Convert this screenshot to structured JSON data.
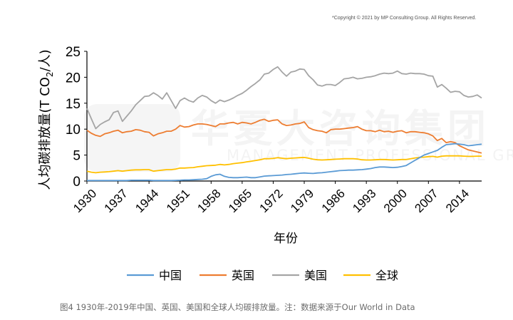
{
  "copyright": "*Copyright © 2021 by MP Consulting Group. All Rights Reserved.",
  "watermark": {
    "cn": "华夏大咨询集团",
    "en": "MANAGEMENT PROFESSIONAL GROUP"
  },
  "caption": "图4  1930年-2019年中国、英国、美国和全球人均碳排放量。注：数据来源于Our World in Data",
  "chart_data": {
    "type": "line",
    "title": "",
    "xlabel": "年份",
    "ylabel": "人均碳排放量(T CO2/人)",
    "ylabel_parts": {
      "main": "人均碳排放量(T CO",
      "sub": "2",
      "tail": "/人)"
    },
    "xlim": [
      1930,
      2019
    ],
    "ylim": [
      0,
      25
    ],
    "x_ticks": [
      "1930",
      "1937",
      "1944",
      "1951",
      "1958",
      "1965",
      "1972",
      "1979",
      "1986",
      "1993",
      "2000",
      "2007",
      "2014"
    ],
    "y_ticks": [
      "0",
      "5",
      "10",
      "15",
      "20",
      "25"
    ],
    "grid": false,
    "legend_position": "bottom",
    "x": [
      1930,
      1931,
      1932,
      1933,
      1934,
      1935,
      1936,
      1937,
      1938,
      1939,
      1940,
      1941,
      1942,
      1943,
      1944,
      1945,
      1946,
      1947,
      1948,
      1949,
      1950,
      1951,
      1952,
      1953,
      1954,
      1955,
      1956,
      1957,
      1958,
      1959,
      1960,
      1961,
      1962,
      1963,
      1964,
      1965,
      1966,
      1967,
      1968,
      1969,
      1970,
      1971,
      1972,
      1973,
      1974,
      1975,
      1976,
      1977,
      1978,
      1979,
      1980,
      1981,
      1982,
      1983,
      1984,
      1985,
      1986,
      1987,
      1988,
      1989,
      1990,
      1991,
      1992,
      1993,
      1994,
      1995,
      1996,
      1997,
      1998,
      1999,
      2000,
      2001,
      2002,
      2003,
      2004,
      2005,
      2006,
      2007,
      2008,
      2009,
      2010,
      2011,
      2012,
      2013,
      2014,
      2015,
      2016,
      2017,
      2018,
      2019
    ],
    "series": [
      {
        "name": "中国",
        "color": "#5b9bd5",
        "values": [
          0.1,
          0.1,
          0.1,
          0.1,
          0.1,
          0.1,
          0.1,
          0.1,
          0.1,
          0.1,
          0.15,
          0.15,
          0.15,
          0.15,
          0.15,
          0.1,
          0.1,
          0.1,
          0.1,
          0.1,
          0.12,
          0.15,
          0.2,
          0.2,
          0.25,
          0.3,
          0.35,
          0.45,
          0.9,
          1.2,
          1.3,
          0.9,
          0.7,
          0.65,
          0.65,
          0.7,
          0.75,
          0.65,
          0.65,
          0.8,
          0.95,
          1.0,
          1.05,
          1.1,
          1.15,
          1.25,
          1.3,
          1.4,
          1.5,
          1.55,
          1.5,
          1.45,
          1.55,
          1.6,
          1.7,
          1.8,
          1.9,
          2.0,
          2.05,
          2.1,
          2.1,
          2.15,
          2.2,
          2.3,
          2.4,
          2.6,
          2.7,
          2.7,
          2.65,
          2.6,
          2.65,
          2.8,
          3.0,
          3.5,
          4.0,
          4.5,
          5.0,
          5.3,
          5.6,
          5.9,
          6.5,
          7.0,
          7.1,
          7.2,
          7.1,
          7.0,
          6.8,
          6.9,
          7.0,
          7.1
        ]
      },
      {
        "name": "英国",
        "color": "#ed7d31",
        "values": [
          9.8,
          9.2,
          8.8,
          8.6,
          9.1,
          9.3,
          9.6,
          9.8,
          9.3,
          9.5,
          9.6,
          9.9,
          9.8,
          9.5,
          9.4,
          8.7,
          9.1,
          9.3,
          9.6,
          9.6,
          10.0,
          10.7,
          10.4,
          10.5,
          10.8,
          11.0,
          11.0,
          10.9,
          10.7,
          10.5,
          11.0,
          11.0,
          11.2,
          11.3,
          11.0,
          11.3,
          11.2,
          11.0,
          11.3,
          11.7,
          11.9,
          11.5,
          11.7,
          11.8,
          11.0,
          10.7,
          10.8,
          11.0,
          11.1,
          11.4,
          10.3,
          9.9,
          9.7,
          9.6,
          9.3,
          9.9,
          10.0,
          10.0,
          10.1,
          10.2,
          10.3,
          10.5,
          10.0,
          9.7,
          9.7,
          9.5,
          9.8,
          9.5,
          9.6,
          9.4,
          9.6,
          9.7,
          9.3,
          9.5,
          9.5,
          9.4,
          9.3,
          9.1,
          8.7,
          7.8,
          8.2,
          7.4,
          7.6,
          7.4,
          6.8,
          6.4,
          6.0,
          5.8,
          5.6,
          5.4
        ]
      },
      {
        "name": "美国",
        "color": "#a5a5a5",
        "values": [
          14.0,
          12.0,
          10.1,
          10.9,
          11.4,
          11.8,
          13.2,
          13.5,
          11.5,
          12.5,
          13.5,
          14.7,
          15.5,
          16.3,
          16.4,
          17.0,
          16.5,
          15.8,
          17.0,
          15.5,
          14.0,
          15.5,
          16.0,
          15.5,
          15.2,
          16.0,
          16.5,
          16.2,
          15.5,
          15.0,
          15.6,
          15.3,
          15.6,
          16.0,
          16.5,
          16.9,
          17.5,
          18.2,
          18.8,
          19.5,
          20.6,
          20.8,
          21.5,
          22.0,
          21.0,
          20.2,
          21.0,
          21.2,
          21.6,
          21.5,
          20.3,
          19.5,
          18.5,
          18.3,
          18.6,
          18.6,
          18.4,
          19.0,
          19.7,
          19.8,
          20.0,
          19.7,
          19.8,
          20.0,
          20.1,
          20.3,
          20.6,
          20.8,
          20.7,
          20.8,
          21.2,
          20.7,
          20.6,
          20.8,
          20.7,
          20.7,
          20.6,
          20.3,
          20.2,
          18.1,
          18.6,
          17.9,
          17.1,
          17.3,
          17.2,
          16.5,
          16.2,
          16.3,
          16.6,
          16.0
        ]
      },
      {
        "name": "全球",
        "color": "#ffc000",
        "values": [
          1.9,
          1.7,
          1.6,
          1.7,
          1.75,
          1.8,
          1.9,
          2.0,
          1.9,
          2.0,
          2.1,
          2.15,
          2.15,
          2.2,
          2.2,
          1.9,
          2.0,
          2.1,
          2.2,
          2.2,
          2.3,
          2.5,
          2.5,
          2.55,
          2.6,
          2.75,
          2.85,
          2.95,
          3.0,
          3.05,
          3.2,
          3.1,
          3.2,
          3.35,
          3.45,
          3.55,
          3.7,
          3.8,
          3.95,
          4.1,
          4.3,
          4.3,
          4.35,
          4.5,
          4.4,
          4.3,
          4.4,
          4.45,
          4.5,
          4.55,
          4.4,
          4.2,
          4.1,
          4.05,
          4.1,
          4.15,
          4.2,
          4.25,
          4.3,
          4.3,
          4.3,
          4.25,
          4.1,
          4.05,
          4.05,
          4.1,
          4.15,
          4.15,
          4.1,
          4.05,
          4.1,
          4.15,
          4.15,
          4.3,
          4.45,
          4.55,
          4.6,
          4.7,
          4.75,
          4.6,
          4.8,
          4.85,
          4.85,
          4.85,
          4.85,
          4.8,
          4.75,
          4.75,
          4.8,
          4.8
        ]
      }
    ]
  }
}
